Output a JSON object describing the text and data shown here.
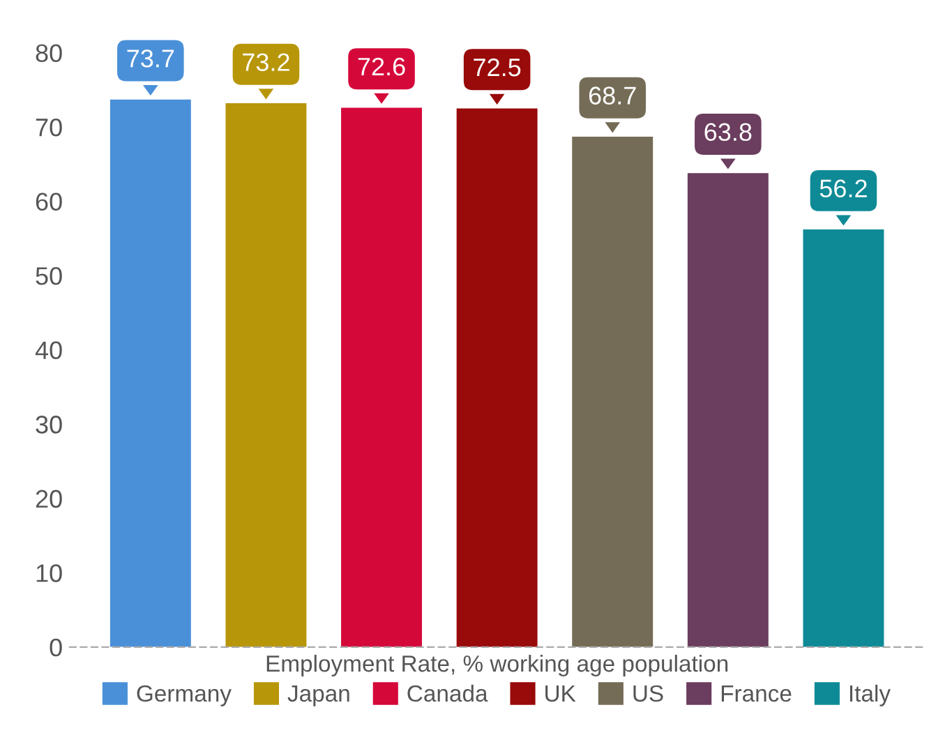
{
  "chart_data": {
    "type": "bar",
    "xlabel": "Employment Rate, % working age population",
    "categories": [
      null,
      null,
      null,
      null,
      null,
      null,
      null
    ],
    "series": [
      {
        "name": "Germany",
        "color": "#4a90d9",
        "values": [
          73.7,
          null,
          null,
          null,
          null,
          null,
          null
        ]
      },
      {
        "name": "Japan",
        "color": "#b8960a",
        "values": [
          null,
          73.2,
          null,
          null,
          null,
          null,
          null
        ]
      },
      {
        "name": "Canada",
        "color": "#d5083a",
        "values": [
          null,
          null,
          72.6,
          null,
          null,
          null,
          null
        ]
      },
      {
        "name": "UK",
        "color": "#990a0a",
        "values": [
          null,
          null,
          null,
          72.5,
          null,
          null,
          null
        ]
      },
      {
        "name": "US",
        "color": "#746c56",
        "values": [
          null,
          null,
          null,
          null,
          68.7,
          null,
          null
        ]
      },
      {
        "name": "France",
        "color": "#6b3d5e",
        "values": [
          null,
          null,
          null,
          null,
          null,
          63.8,
          null
        ]
      },
      {
        "name": "Italy",
        "color": "#0e8a96",
        "values": [
          null,
          null,
          null,
          null,
          null,
          null,
          56.2
        ]
      }
    ],
    "ylim": [
      0,
      80
    ],
    "yticks": [
      0,
      10,
      20,
      30,
      40,
      50,
      60,
      70,
      80
    ],
    "data_labels": true,
    "grid": false,
    "legend": "bottom",
    "tick_labels": "y"
  }
}
